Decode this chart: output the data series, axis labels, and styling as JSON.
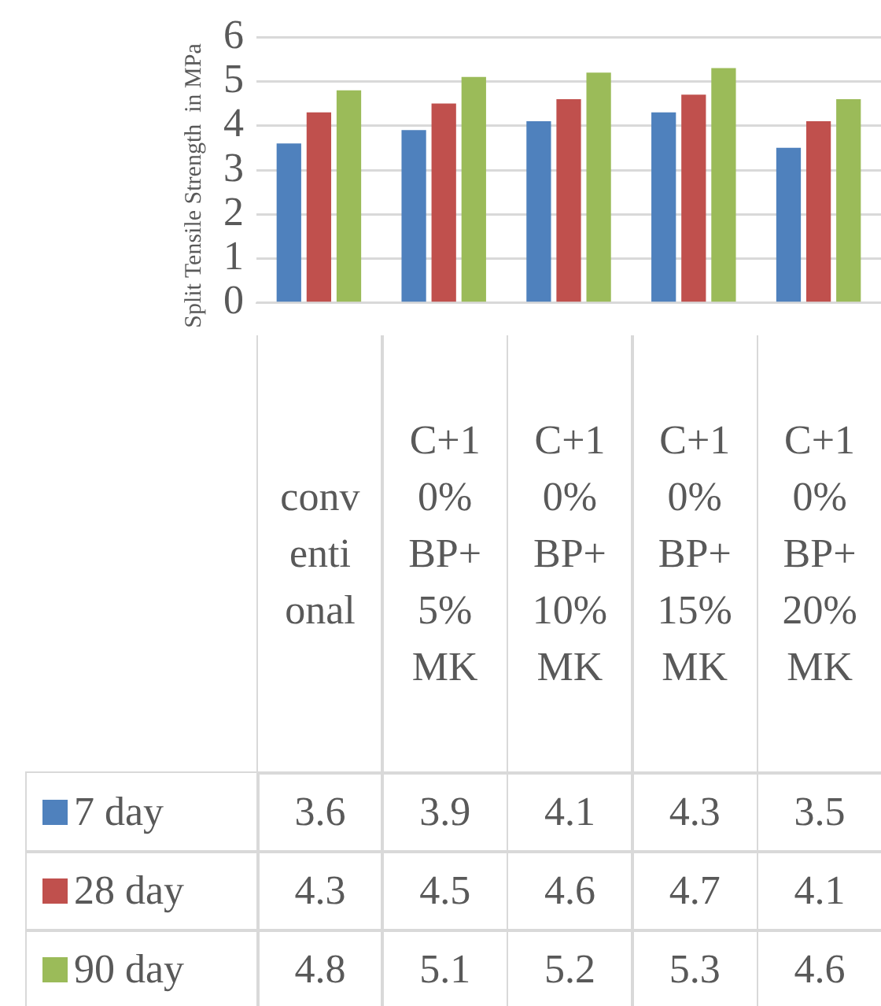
{
  "chart_data": {
    "type": "bar",
    "ylabel": "Split Tensile Strength  in MPa",
    "categories": [
      "conventional",
      "C+10%BP+5%MK",
      "C+10%BP+10%MK",
      "C+10%BP+15%MK",
      "C+10%BP+20%MK"
    ],
    "series": [
      {
        "name": "7 day",
        "color": "#4f81bd",
        "values": [
          3.6,
          3.9,
          4.1,
          4.3,
          3.5
        ]
      },
      {
        "name": "28 day",
        "color": "#c0504d",
        "values": [
          4.3,
          4.5,
          4.6,
          4.7,
          4.1
        ]
      },
      {
        "name": "90 day",
        "color": "#9bbb59",
        "values": [
          4.8,
          5.1,
          5.2,
          5.3,
          4.6
        ]
      }
    ],
    "ylim": [
      0,
      6
    ],
    "yticks": [
      0,
      1,
      2,
      3,
      4,
      5,
      6
    ],
    "grid": "y",
    "legend": "bottom",
    "data_labels": true
  }
}
